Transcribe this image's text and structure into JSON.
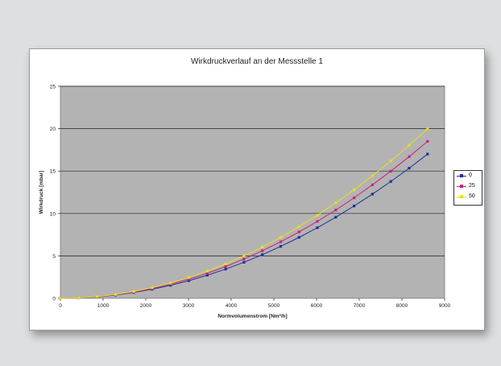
{
  "chart_data": {
    "type": "line",
    "title": "Wirkdruckverlauf an der Messstelle 1",
    "xlabel": "Normvolumenstrom [Nm³/h]",
    "ylabel": "Wirkdruck [mbar]",
    "xlim": [
      0,
      9000
    ],
    "ylim": [
      0,
      25
    ],
    "xticks": [
      "0",
      "1000",
      "2000",
      "3000",
      "4000",
      "5000",
      "6000",
      "7000",
      "8000",
      "9000"
    ],
    "yticks": [
      "0",
      "5",
      "10",
      "15",
      "20",
      "25"
    ],
    "grid": true,
    "legend_position": "right",
    "plot_background": "#b3b3b3",
    "series": [
      {
        "name": "0",
        "color": "#1f2f9c",
        "x": [
          0,
          430,
          860,
          1290,
          1720,
          2150,
          2580,
          3010,
          3440,
          3870,
          4300,
          4730,
          5160,
          5590,
          6020,
          6450,
          6880,
          7310,
          7740,
          8170,
          8600
        ],
        "y": [
          0,
          0.04,
          0.17,
          0.38,
          0.68,
          1.06,
          1.53,
          2.08,
          2.72,
          3.44,
          4.25,
          5.14,
          6.12,
          7.18,
          8.33,
          9.56,
          10.88,
          12.28,
          13.77,
          15.34,
          17.0
        ]
      },
      {
        "name": "25",
        "color": "#c8237c",
        "x": [
          0,
          430,
          860,
          1290,
          1720,
          2150,
          2580,
          3010,
          3440,
          3870,
          4300,
          4730,
          5160,
          5590,
          6020,
          6450,
          6880,
          7310,
          7740,
          8170,
          8600
        ],
        "y": [
          0,
          0.05,
          0.19,
          0.42,
          0.74,
          1.16,
          1.67,
          2.27,
          2.96,
          3.75,
          4.63,
          5.6,
          6.66,
          7.82,
          9.07,
          10.41,
          11.84,
          13.37,
          14.99,
          16.7,
          18.5
        ]
      },
      {
        "name": "50",
        "color": "#e8e020",
        "x": [
          0,
          430,
          860,
          1290,
          1720,
          2150,
          2580,
          3010,
          3440,
          3870,
          4300,
          4730,
          5160,
          5590,
          6020,
          6450,
          6880,
          7310,
          7740,
          8170,
          8600
        ],
        "y": [
          0,
          0.05,
          0.2,
          0.45,
          0.8,
          1.25,
          1.8,
          2.45,
          3.2,
          4.05,
          5.0,
          6.05,
          7.2,
          8.45,
          9.8,
          11.25,
          12.8,
          14.45,
          16.2,
          18.05,
          20.0
        ]
      }
    ]
  }
}
